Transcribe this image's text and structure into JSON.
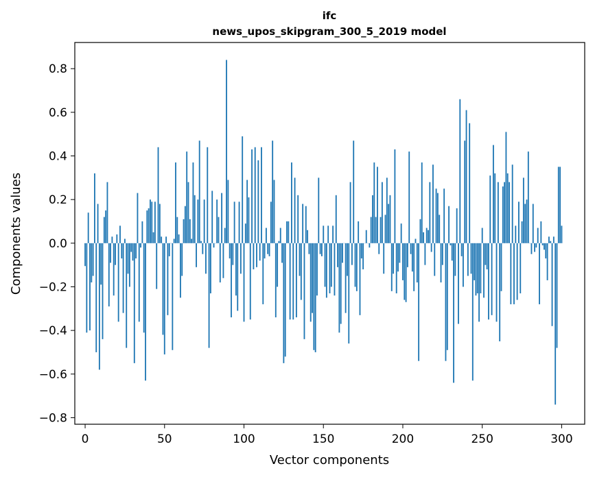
{
  "chart_data": {
    "type": "bar",
    "title": "ifc",
    "subtitle": "news_upos_skipgram_300_5_2019 model",
    "xlabel": "Vector components",
    "ylabel": "Components values",
    "xlim": [
      -6.5,
      314.5
    ],
    "ylim": [
      -0.83,
      0.92
    ],
    "xticks": [
      0,
      50,
      100,
      150,
      200,
      250,
      300
    ],
    "xtick_labels": [
      "0",
      "50",
      "100",
      "150",
      "200",
      "250",
      "300"
    ],
    "yticks": [
      -0.8,
      -0.6,
      -0.4,
      -0.2,
      0.0,
      0.2,
      0.4,
      0.6,
      0.8
    ],
    "ytick_labels": [
      "−0.8",
      "−0.6",
      "−0.4",
      "−0.2",
      "0.0",
      "0.2",
      "0.4",
      "0.6",
      "0.8"
    ],
    "grid": false,
    "series": [
      {
        "name": "ifc",
        "color": "#1f77b4",
        "values": [
          -0.105,
          -0.41,
          0.14,
          -0.4,
          -0.18,
          -0.15,
          0.32,
          -0.5,
          0.18,
          -0.58,
          -0.19,
          -0.44,
          0.12,
          0.15,
          0.28,
          -0.29,
          -0.09,
          0.03,
          -0.24,
          -0.1,
          0.04,
          -0.36,
          0.08,
          -0.07,
          -0.32,
          0.02,
          -0.48,
          -0.14,
          -0.2,
          -0.04,
          -0.08,
          -0.55,
          -0.07,
          0.23,
          -0.36,
          -0.02,
          0.1,
          -0.41,
          -0.63,
          0.15,
          0.16,
          0.2,
          0.19,
          0.05,
          0.19,
          -0.21,
          0.44,
          0.18,
          0.03,
          -0.42,
          -0.51,
          0.03,
          -0.33,
          -0.06,
          0.0,
          -0.49,
          0.02,
          0.37,
          0.12,
          0.04,
          -0.25,
          -0.15,
          0.11,
          0.17,
          0.42,
          0.28,
          0.11,
          0.02,
          0.37,
          0.22,
          -0.11,
          0.2,
          0.47,
          0.01,
          -0.05,
          0.2,
          -0.14,
          0.44,
          -0.48,
          -0.23,
          0.24,
          -0.02,
          0.0,
          0.2,
          0.12,
          -0.18,
          0.23,
          -0.16,
          0.07,
          0.84,
          0.29,
          -0.07,
          -0.34,
          -0.1,
          0.19,
          -0.24,
          -0.31,
          0.19,
          -0.14,
          0.49,
          -0.36,
          0.09,
          0.29,
          0.21,
          -0.35,
          0.43,
          -0.12,
          0.44,
          -0.11,
          0.38,
          -0.08,
          0.44,
          -0.28,
          -0.07,
          0.07,
          -0.05,
          -0.06,
          0.19,
          0.47,
          0.29,
          -0.34,
          -0.2,
          0.01,
          0.07,
          -0.09,
          -0.55,
          -0.52,
          0.1,
          0.1,
          -0.35,
          0.37,
          -0.35,
          0.3,
          -0.34,
          0.22,
          -0.15,
          -0.26,
          0.18,
          -0.44,
          0.17,
          0.06,
          -0.05,
          -0.36,
          -0.32,
          -0.49,
          -0.5,
          -0.24,
          0.3,
          -0.05,
          -0.06,
          0.08,
          -0.2,
          -0.25,
          0.08,
          -0.23,
          -0.2,
          0.08,
          -0.24,
          0.22,
          -0.11,
          -0.41,
          -0.37,
          -0.09,
          0.0,
          -0.32,
          -0.15,
          -0.46,
          0.28,
          -0.1,
          0.47,
          -0.2,
          -0.22,
          0.1,
          -0.33,
          -0.07,
          -0.12,
          0.0,
          0.06,
          0.0,
          -0.02,
          0.12,
          0.22,
          0.37,
          0.12,
          0.35,
          -0.05,
          0.12,
          0.28,
          -0.14,
          0.13,
          0.3,
          0.18,
          0.22,
          -0.22,
          -0.14,
          0.43,
          -0.23,
          -0.13,
          -0.09,
          0.09,
          -0.17,
          -0.26,
          -0.27,
          -0.11,
          0.42,
          -0.05,
          -0.13,
          -0.22,
          0.02,
          -0.18,
          -0.54,
          0.11,
          0.37,
          0.05,
          -0.1,
          0.07,
          0.06,
          0.28,
          -0.04,
          0.36,
          -0.15,
          0.25,
          0.23,
          0.13,
          -0.18,
          -0.1,
          0.25,
          -0.54,
          -0.49,
          0.17,
          -0.01,
          -0.08,
          -0.64,
          -0.15,
          0.16,
          -0.37,
          0.66,
          -0.06,
          -0.2,
          0.47,
          0.61,
          -0.15,
          0.55,
          -0.14,
          -0.63,
          -0.17,
          -0.24,
          -0.23,
          -0.36,
          -0.23,
          0.07,
          -0.25,
          -0.1,
          -0.12,
          -0.35,
          0.31,
          -0.33,
          0.45,
          0.32,
          -0.36,
          0.28,
          -0.45,
          -0.22,
          0.26,
          0.28,
          0.51,
          0.32,
          0.28,
          -0.28,
          0.36,
          -0.28,
          0.08,
          -0.26,
          0.19,
          -0.23,
          0.1,
          0.3,
          0.18,
          0.2,
          0.42,
          0.0,
          -0.05,
          0.18,
          -0.04,
          -0.02,
          0.07,
          -0.28,
          0.1,
          -0.01,
          -0.03,
          -0.07,
          -0.17,
          0.03,
          0.01,
          -0.38,
          0.03,
          -0.74,
          -0.48,
          0.35,
          0.35,
          0.08
        ]
      }
    ]
  }
}
